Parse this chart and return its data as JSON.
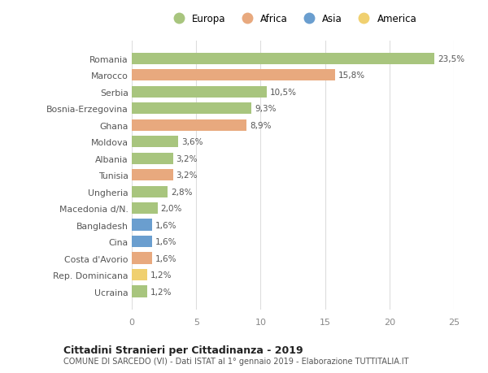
{
  "countries": [
    "Romania",
    "Marocco",
    "Serbia",
    "Bosnia-Erzegovina",
    "Ghana",
    "Moldova",
    "Albania",
    "Tunisia",
    "Ungheria",
    "Macedonia d/N.",
    "Bangladesh",
    "Cina",
    "Costa d'Avorio",
    "Rep. Dominicana",
    "Ucraina"
  ],
  "values": [
    23.5,
    15.8,
    10.5,
    9.3,
    8.9,
    3.6,
    3.2,
    3.2,
    2.8,
    2.0,
    1.6,
    1.6,
    1.6,
    1.2,
    1.2
  ],
  "labels": [
    "23,5%",
    "15,8%",
    "10,5%",
    "9,3%",
    "8,9%",
    "3,6%",
    "3,2%",
    "3,2%",
    "2,8%",
    "2,0%",
    "1,6%",
    "1,6%",
    "1,6%",
    "1,2%",
    "1,2%"
  ],
  "continents": [
    "Europa",
    "Africa",
    "Europa",
    "Europa",
    "Africa",
    "Europa",
    "Europa",
    "Africa",
    "Europa",
    "Europa",
    "Asia",
    "Asia",
    "Africa",
    "America",
    "Europa"
  ],
  "colors": {
    "Europa": "#a8c57e",
    "Africa": "#e8a97e",
    "Asia": "#6a9ecf",
    "America": "#f0d070"
  },
  "legend_order": [
    "Europa",
    "Africa",
    "Asia",
    "America"
  ],
  "title": "Cittadini Stranieri per Cittadinanza - 2019",
  "subtitle": "COMUNE DI SARCEDO (VI) - Dati ISTAT al 1° gennaio 2019 - Elaborazione TUTTITALIA.IT",
  "xlim": [
    0,
    25
  ],
  "xticks": [
    0,
    5,
    10,
    15,
    20,
    25
  ],
  "background_color": "#ffffff",
  "grid_color": "#dddddd",
  "bar_height": 0.7
}
